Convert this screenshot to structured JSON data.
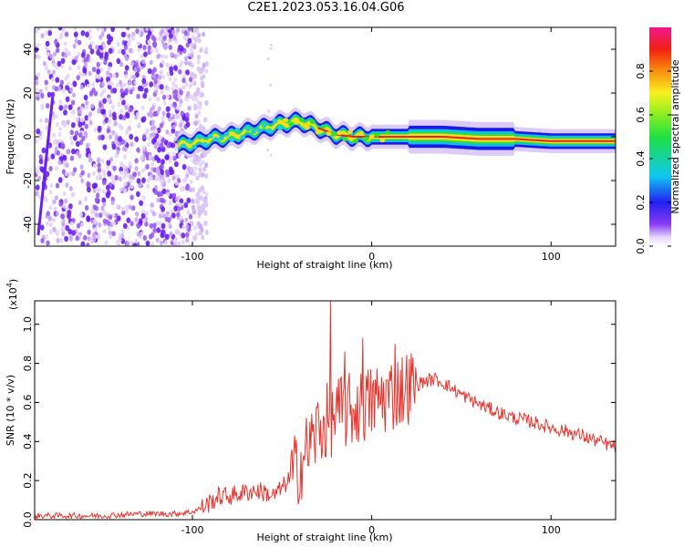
{
  "title": "C2E1.2023.053.16.04.G06",
  "chart_data": [
    {
      "type": "heatmap",
      "xlabel": "Height of straight line (km)",
      "ylabel": "Frequency (Hz)",
      "xlim": [
        -188,
        136
      ],
      "ylim": [
        -50,
        50
      ],
      "xticks": [
        -100,
        0,
        100
      ],
      "xtick_labels": [
        "-100",
        "0",
        "100"
      ],
      "yticks": [
        -40,
        -20,
        0,
        20,
        40
      ],
      "ytick_labels": [
        "-40",
        "-20",
        "0",
        "20",
        "40"
      ],
      "colorbar": {
        "label": "Normalized spectral amplitude",
        "range": [
          0,
          1
        ],
        "ticks": [
          0,
          0.2,
          0.4,
          0.6,
          0.8
        ],
        "tick_labels": [
          "0.0",
          "0.2",
          "0.4",
          "0.6",
          "0.8"
        ],
        "colormap": "rainbow (white/light purple -> blue -> cyan -> green -> yellow -> red -> magenta)"
      },
      "ridge": {
        "description": "narrow high-amplitude frequency track",
        "x": [
          -108,
          -100,
          -90,
          -80,
          -70,
          -60,
          -50,
          -40,
          -30,
          -20,
          -10,
          0,
          10,
          20,
          40,
          60,
          80,
          100,
          120,
          136
        ],
        "y": [
          -4,
          -3,
          -1,
          0,
          2,
          4,
          6,
          7,
          4,
          1,
          0,
          0,
          0,
          0,
          0,
          -1,
          -1,
          -2,
          -2,
          -2
        ]
      },
      "noise_region_x": [
        -188,
        -98
      ]
    },
    {
      "type": "line",
      "xlabel": "Height of straight line (km)",
      "ylabel": "SNR (10 * v/v)",
      "yscale_label": "(x10",
      "yscale_exp": "4",
      "yscale_close": ")",
      "xlim": [
        -188,
        136
      ],
      "ylim": [
        0,
        1.12
      ],
      "xticks": [
        -100,
        0,
        100
      ],
      "xtick_labels": [
        "-100",
        "0",
        "100"
      ],
      "yticks": [
        0,
        0.2,
        0.4,
        0.6,
        0.8,
        1.0
      ],
      "ytick_labels": [
        "0.0",
        "0.2",
        "0.4",
        "0.6",
        "0.8",
        "1.0"
      ],
      "color": "#e8332c",
      "series": [
        {
          "x": [
            -188,
            -170,
            -150,
            -130,
            -110,
            -100,
            -95,
            -90,
            -85,
            -80,
            -75,
            -70,
            -65,
            -60,
            -55,
            -50,
            -45,
            -40,
            -35,
            -30,
            -25,
            -22,
            -20,
            -15,
            -10,
            -5,
            0,
            5,
            10,
            15,
            20,
            25,
            30,
            35,
            40,
            50,
            60,
            70,
            80,
            90,
            100,
            110,
            120,
            130,
            136
          ],
          "y": [
            0.02,
            0.02,
            0.02,
            0.03,
            0.03,
            0.04,
            0.06,
            0.09,
            0.12,
            0.12,
            0.13,
            0.14,
            0.15,
            0.14,
            0.12,
            0.16,
            0.22,
            0.28,
            0.38,
            0.45,
            0.5,
            0.52,
            0.54,
            0.55,
            0.56,
            0.58,
            0.6,
            0.62,
            0.64,
            0.66,
            0.68,
            0.69,
            0.71,
            0.72,
            0.7,
            0.64,
            0.59,
            0.55,
            0.52,
            0.5,
            0.47,
            0.45,
            0.42,
            0.39,
            0.37
          ]
        }
      ],
      "spikes": [
        {
          "x": -23,
          "y": 1.12
        },
        {
          "x": -5,
          "y": 0.93
        },
        {
          "x": 13,
          "y": 0.9
        },
        {
          "x": -30,
          "y": 0.6
        },
        {
          "x": -15,
          "y": 0.86
        }
      ]
    }
  ]
}
